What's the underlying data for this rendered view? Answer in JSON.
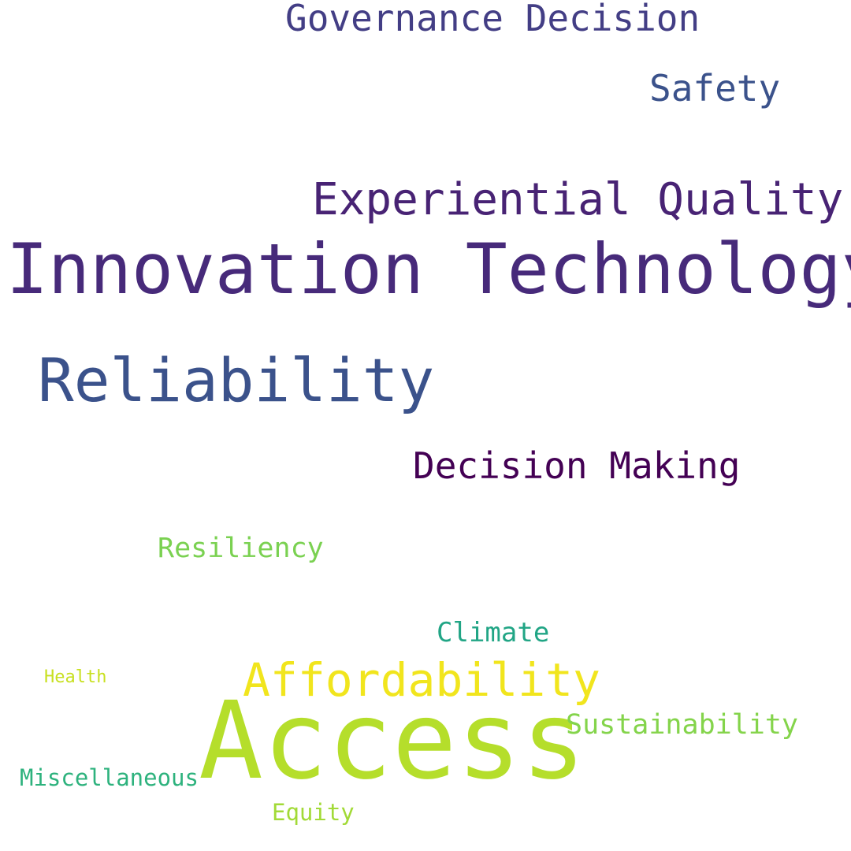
{
  "words": [
    {
      "id": "innovation-technology",
      "text": "Innovation Technology",
      "color": "#472a7a"
    },
    {
      "id": "access",
      "text": "Access",
      "color": "#b5de2b"
    },
    {
      "id": "reliability",
      "text": "Reliability",
      "color": "#3b528b"
    },
    {
      "id": "experiential-quality",
      "text": "Experiential Quality",
      "color": "#482374"
    },
    {
      "id": "affordability",
      "text": "Affordability",
      "color": "#f1e51d"
    },
    {
      "id": "governance-decision",
      "text": "Governance Decision",
      "color": "#433e85"
    },
    {
      "id": "decision-making",
      "text": "Decision Making",
      "color": "#440154"
    },
    {
      "id": "safety",
      "text": "Safety",
      "color": "#3b528b"
    },
    {
      "id": "resiliency",
      "text": "Resiliency",
      "color": "#7ad151"
    },
    {
      "id": "climate",
      "text": "Climate",
      "color": "#21a585"
    },
    {
      "id": "sustainability",
      "text": "Sustainability",
      "color": "#84d44b"
    },
    {
      "id": "miscellaneous",
      "text": "Miscellaneous",
      "color": "#2db27d"
    },
    {
      "id": "equity",
      "text": "Equity",
      "color": "#a2da37"
    },
    {
      "id": "health",
      "text": "Health",
      "color": "#c8e020"
    }
  ]
}
